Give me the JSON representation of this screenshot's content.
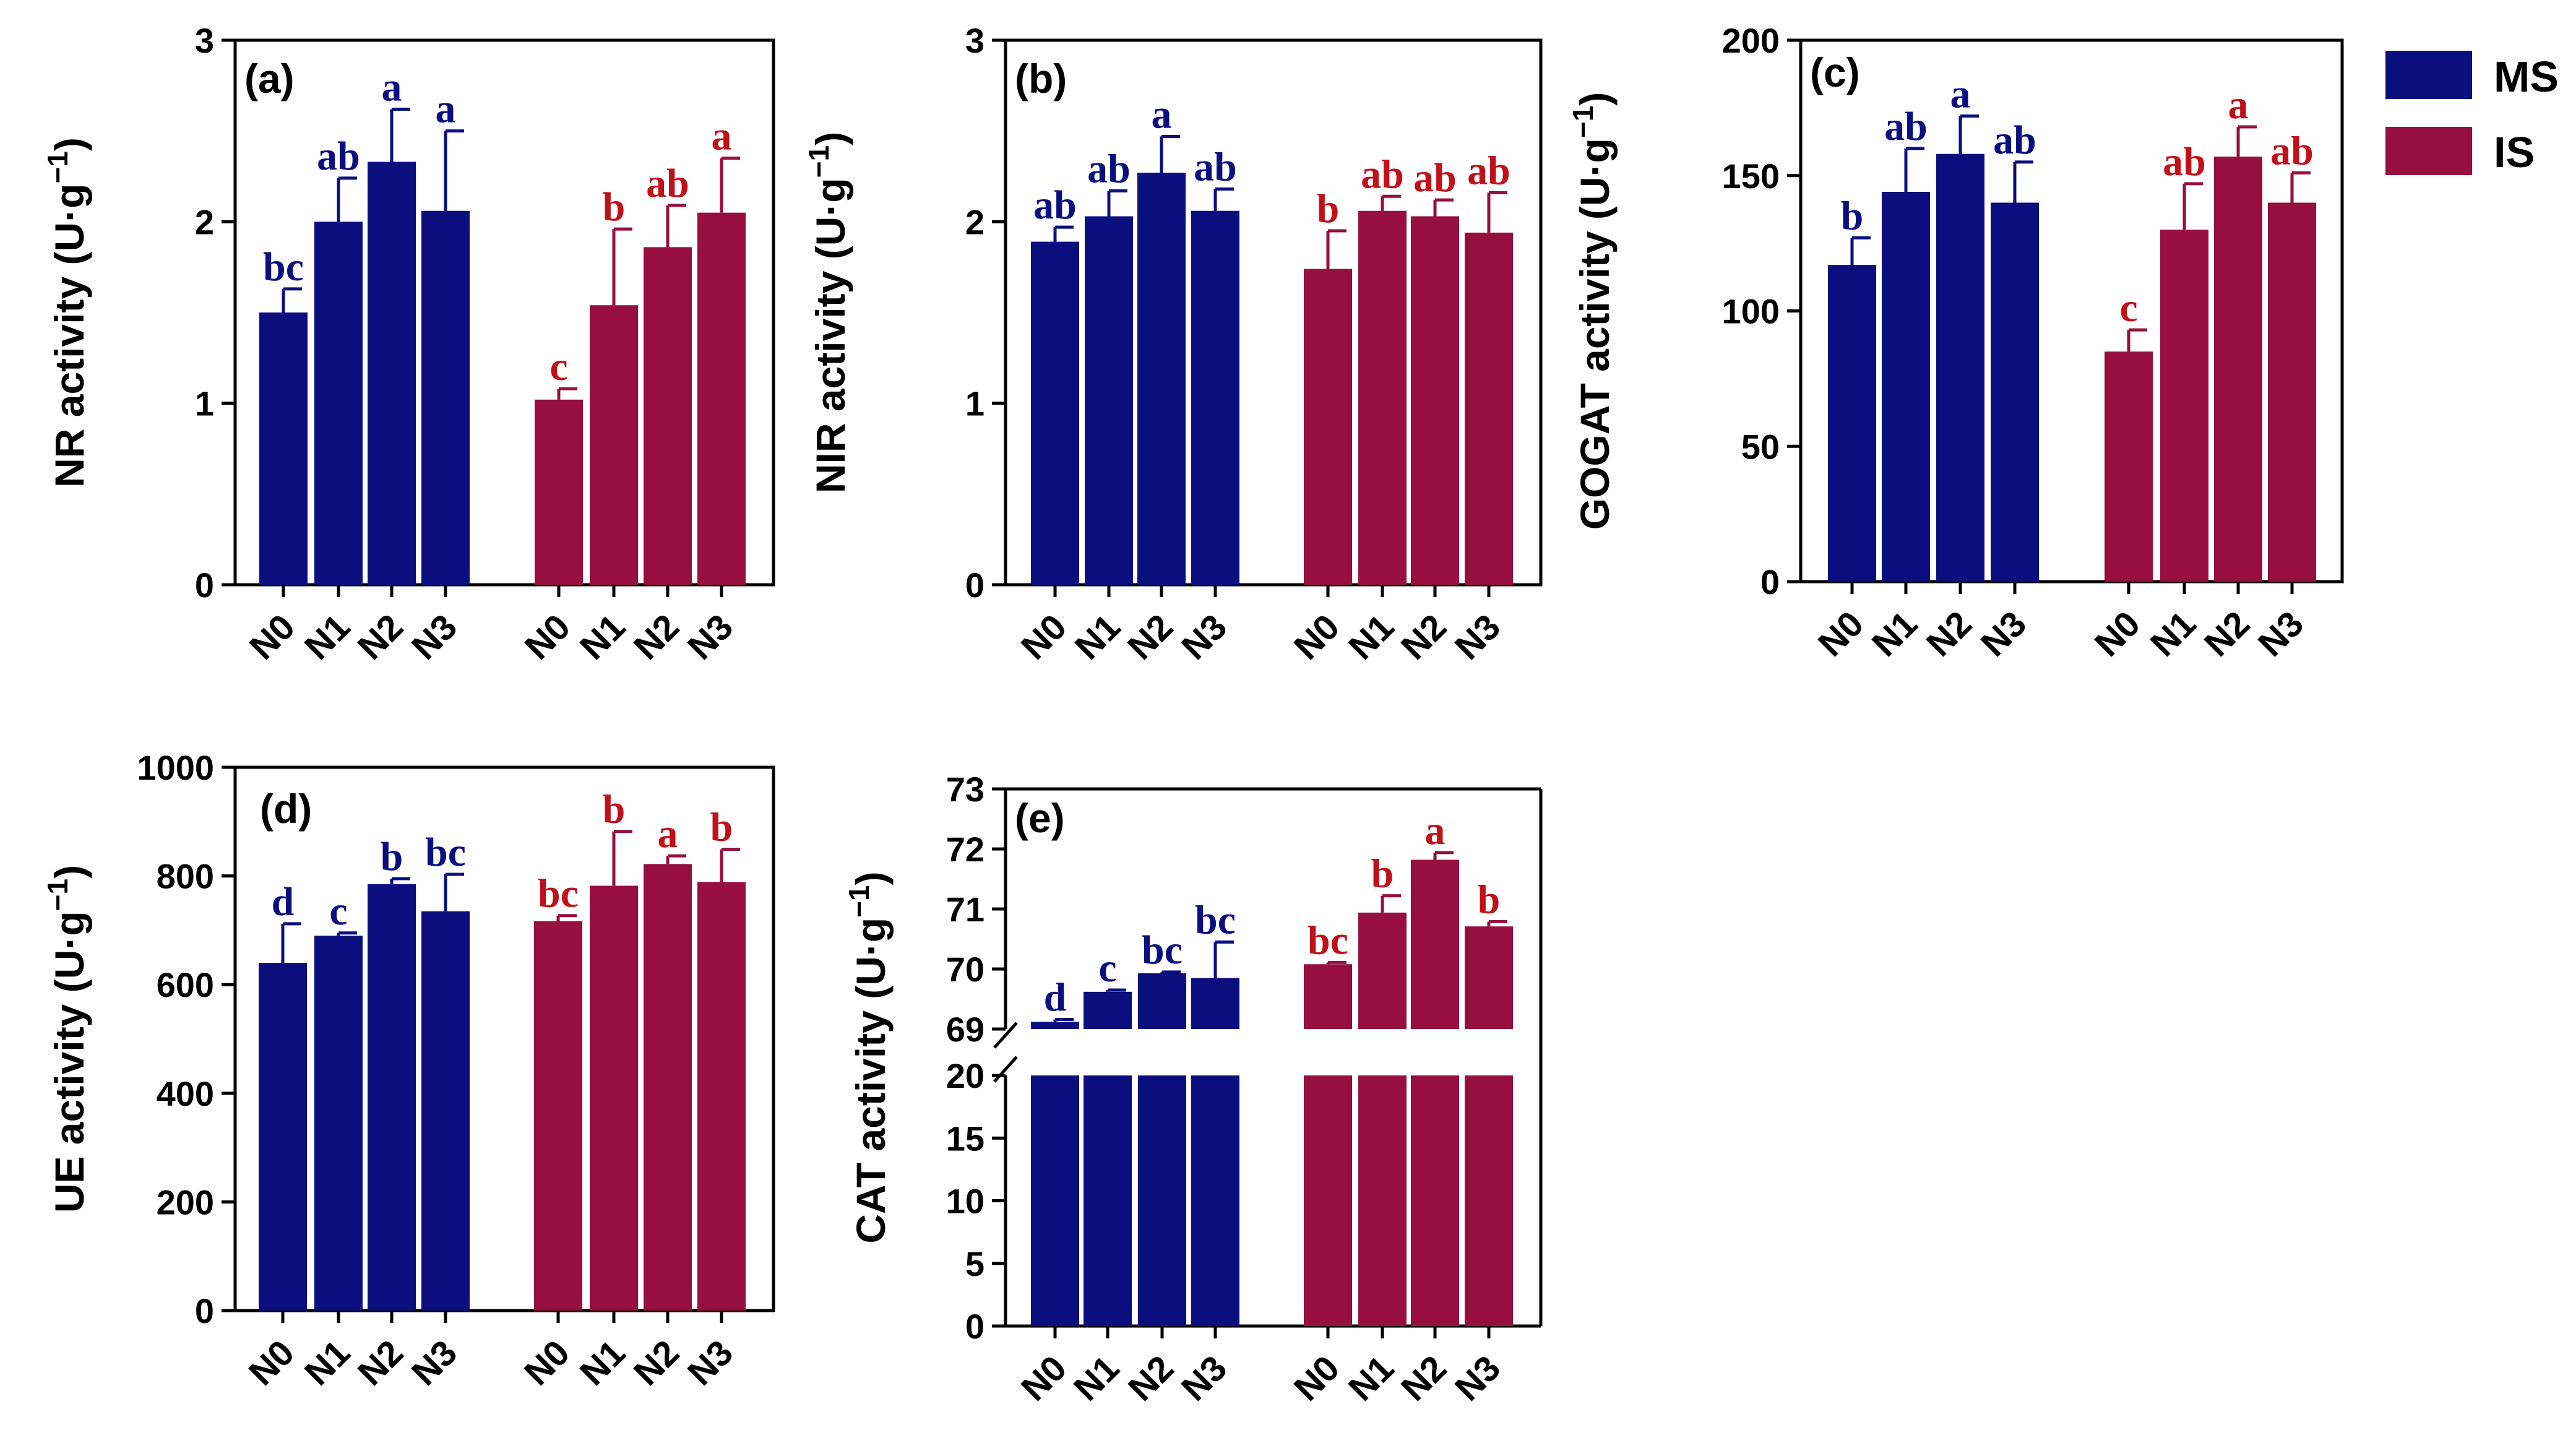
{
  "legend": [
    {
      "name": "MS",
      "color": "#0b0f7e"
    },
    {
      "name": "IS",
      "color": "#960f3e"
    }
  ],
  "significance_colors": {
    "MS": "#0b0f7e",
    "IS": "#c0111b"
  },
  "chart_data": [
    {
      "type": "bar",
      "panel": "(a)",
      "ylabel_main": "NR activity (U·g",
      "ylabel_sup": "−1",
      "ylabel_end": ")",
      "ylim": [
        0,
        3
      ],
      "yticks": [
        "0",
        "1",
        "2",
        "3"
      ],
      "categories": [
        "N0",
        "N1",
        "N2",
        "N3",
        "N0",
        "N1",
        "N2",
        "N3"
      ],
      "groups": [
        "MS",
        "MS",
        "MS",
        "MS",
        "IS",
        "IS",
        "IS",
        "IS"
      ],
      "values": [
        1.5,
        2.0,
        2.33,
        2.06,
        1.02,
        1.54,
        1.86,
        2.05
      ],
      "errors": [
        0.13,
        0.24,
        0.29,
        0.44,
        0.06,
        0.42,
        0.23,
        0.3
      ],
      "labels": [
        "bc",
        "ab",
        "a",
        "a",
        "c",
        "b",
        "ab",
        "a"
      ]
    },
    {
      "type": "bar",
      "panel": "(b)",
      "ylabel_main": "NIR activity (U·g",
      "ylabel_sup": "−1",
      "ylabel_end": ")",
      "ylim": [
        0,
        3
      ],
      "yticks": [
        "0",
        "1",
        "2",
        "3"
      ],
      "categories": [
        "N0",
        "N1",
        "N2",
        "N3",
        "N0",
        "N1",
        "N2",
        "N3"
      ],
      "groups": [
        "MS",
        "MS",
        "MS",
        "MS",
        "IS",
        "IS",
        "IS",
        "IS"
      ],
      "values": [
        1.89,
        2.03,
        2.27,
        2.06,
        1.74,
        2.06,
        2.03,
        1.94
      ],
      "errors": [
        0.08,
        0.14,
        0.2,
        0.12,
        0.21,
        0.08,
        0.09,
        0.22
      ],
      "labels": [
        "ab",
        "ab",
        "a",
        "ab",
        "b",
        "ab",
        "ab",
        "ab"
      ]
    },
    {
      "type": "bar",
      "panel": "(c)",
      "ylabel_main": "GOGAT activity  (U·g",
      "ylabel_sup": "−1",
      "ylabel_end": ")",
      "ylim": [
        0,
        200
      ],
      "yticks": [
        "0",
        "50",
        "100",
        "150",
        "200"
      ],
      "categories": [
        "N0",
        "N1",
        "N2",
        "N3",
        "N0",
        "N1",
        "N2",
        "N3"
      ],
      "groups": [
        "MS",
        "MS",
        "MS",
        "MS",
        "IS",
        "IS",
        "IS",
        "IS"
      ],
      "values": [
        117,
        144,
        158,
        140,
        85,
        130,
        157,
        140
      ],
      "errors": [
        10,
        16,
        14,
        15,
        8,
        17,
        11,
        11
      ],
      "labels": [
        "b",
        "ab",
        "a",
        "ab",
        "c",
        "ab",
        "a",
        "ab"
      ]
    },
    {
      "type": "bar",
      "panel": "(d)",
      "ylabel_main": "UE activity (U·g",
      "ylabel_sup": "−1",
      "ylabel_end": ")",
      "ylim": [
        0,
        1000
      ],
      "yticks": [
        "0",
        "200",
        "400",
        "600",
        "800",
        "1000"
      ],
      "categories": [
        "N0",
        "N1",
        "N2",
        "N3",
        "N0",
        "N1",
        "N2",
        "N3"
      ],
      "groups": [
        "MS",
        "MS",
        "MS",
        "MS",
        "IS",
        "IS",
        "IS",
        "IS"
      ],
      "values": [
        640,
        690,
        785,
        735,
        717,
        782,
        822,
        789
      ],
      "errors": [
        72,
        5,
        10,
        68,
        10,
        100,
        15,
        60
      ],
      "labels": [
        "d",
        "c",
        "b",
        "bc",
        "bc",
        "b",
        "a",
        "b"
      ]
    },
    {
      "type": "bar",
      "panel": "(e)",
      "broken_axis": true,
      "ylabel_main": "CAT activity (U·g",
      "ylabel_sup": "−1",
      "ylabel_end": ")",
      "lower_ylim": [
        0,
        20
      ],
      "lower_yticks": [
        "0",
        "5",
        "10",
        "15",
        "20"
      ],
      "upper_ylim": [
        69,
        73
      ],
      "upper_yticks": [
        "69",
        "70",
        "71",
        "72",
        "73"
      ],
      "categories": [
        "N0",
        "N1",
        "N2",
        "N3",
        "N0",
        "N1",
        "N2",
        "N3"
      ],
      "groups": [
        "MS",
        "MS",
        "MS",
        "MS",
        "IS",
        "IS",
        "IS",
        "IS"
      ],
      "values": [
        69.12,
        69.62,
        69.93,
        69.85,
        70.08,
        70.94,
        71.82,
        70.71
      ],
      "errors": [
        0.04,
        0.03,
        0.02,
        0.6,
        0.03,
        0.28,
        0.12,
        0.08
      ],
      "labels": [
        "d",
        "c",
        "bc",
        "bc",
        "bc",
        "b",
        "a",
        "b"
      ]
    }
  ]
}
